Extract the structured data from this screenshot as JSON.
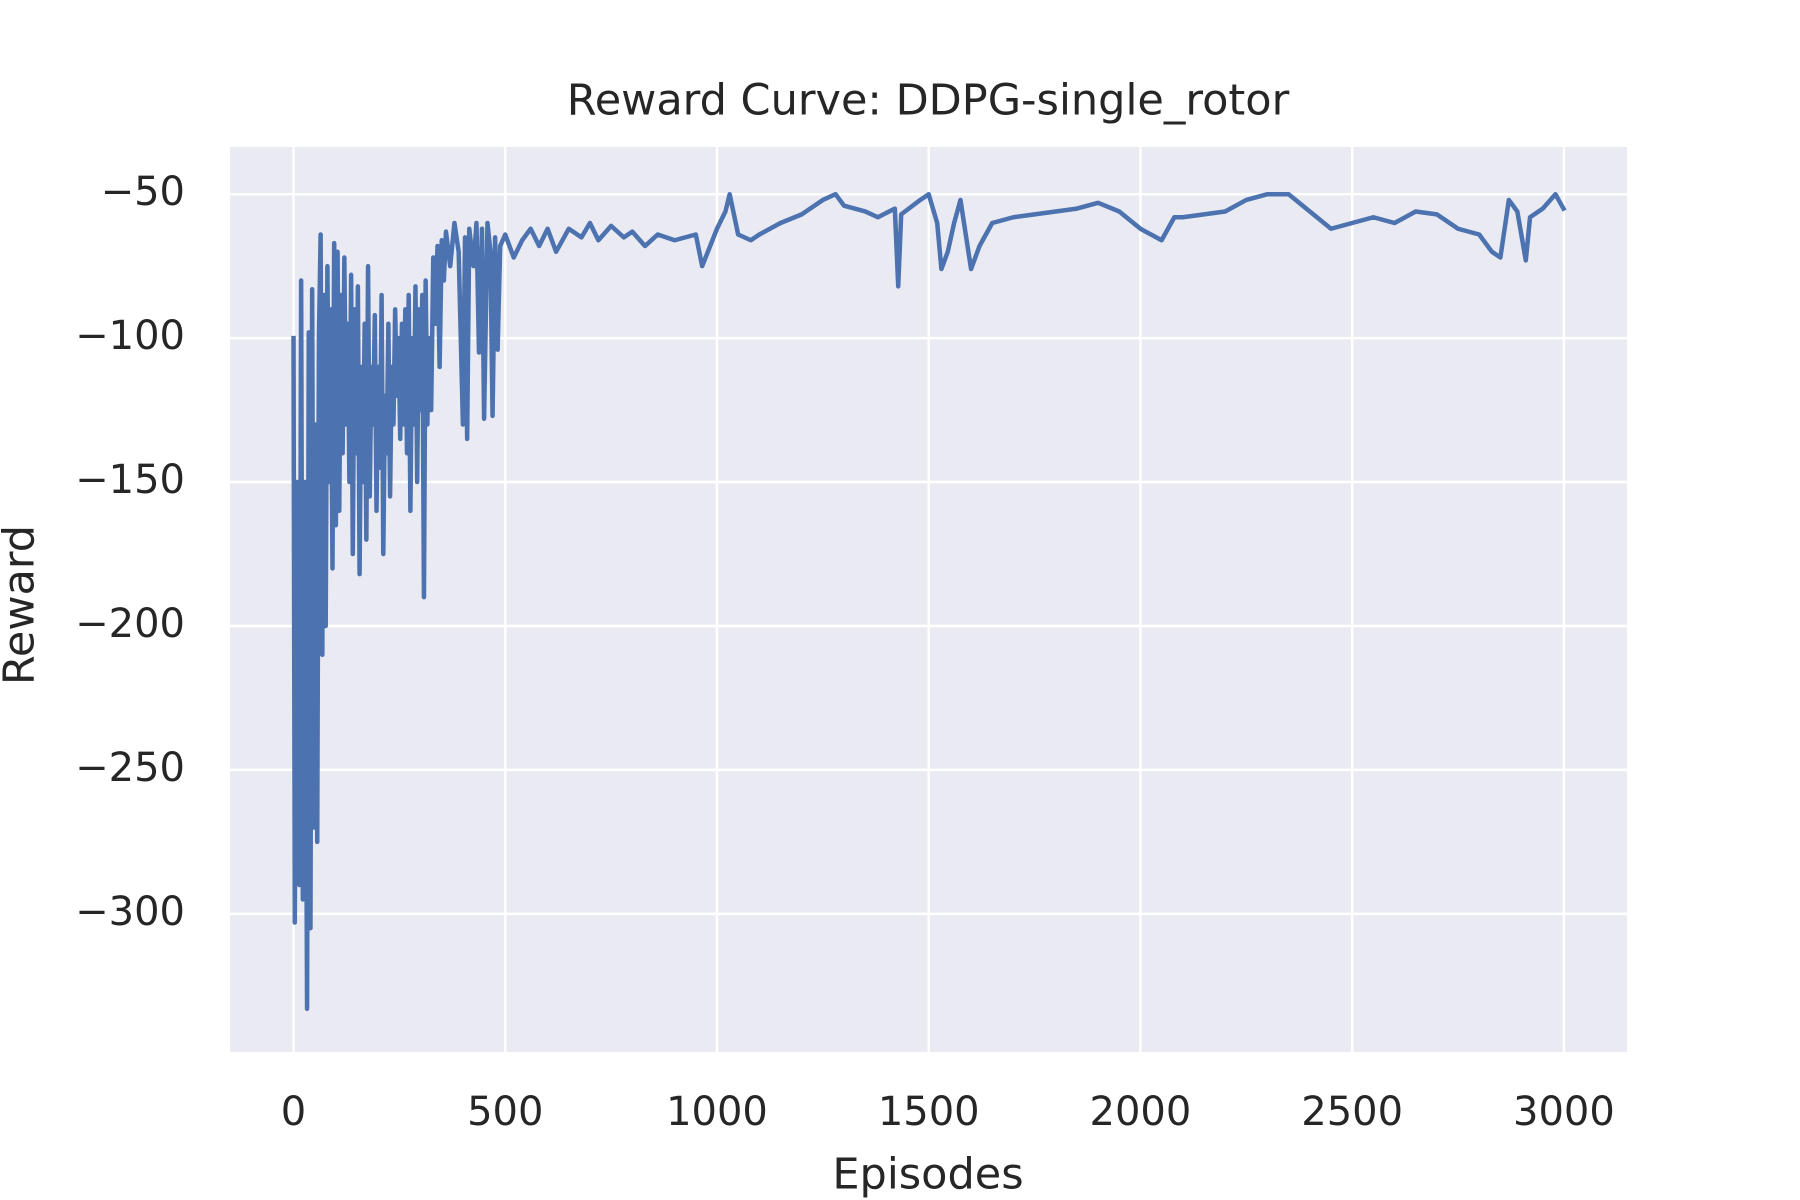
{
  "chart_data": {
    "type": "line",
    "title": "Reward Curve: DDPG-single_rotor",
    "xlabel": "Episodes",
    "ylabel": "Reward",
    "xlim": [
      -150,
      3149
    ],
    "ylim": [
      -348,
      -33.6
    ],
    "xticks": [
      0,
      500,
      1000,
      1500,
      2000,
      2500,
      3000
    ],
    "yticks": [
      {
        "value": -300,
        "label": "−300"
      },
      {
        "value": -250,
        "label": "−250"
      },
      {
        "value": -200,
        "label": "−200"
      },
      {
        "value": -150,
        "label": "−150"
      },
      {
        "value": -100,
        "label": "−100"
      },
      {
        "value": -50,
        "label": "−50"
      }
    ],
    "grid": true,
    "series": [
      {
        "color": "#4c72b0",
        "x": [
          0,
          3,
          8,
          14,
          18,
          22,
          27,
          32,
          36,
          40,
          44,
          48,
          52,
          56,
          60,
          64,
          68,
          72,
          76,
          80,
          84,
          88,
          92,
          96,
          100,
          104,
          108,
          112,
          116,
          120,
          124,
          128,
          132,
          136,
          140,
          144,
          148,
          152,
          156,
          160,
          164,
          168,
          172,
          176,
          180,
          184,
          188,
          192,
          196,
          200,
          204,
          208,
          212,
          216,
          220,
          224,
          228,
          232,
          236,
          240,
          244,
          248,
          252,
          256,
          260,
          264,
          268,
          272,
          276,
          280,
          284,
          288,
          292,
          296,
          300,
          304,
          308,
          312,
          316,
          320,
          325,
          330,
          335,
          340,
          345,
          350,
          355,
          360,
          370,
          380,
          390,
          400,
          405,
          410,
          415,
          425,
          432,
          438,
          445,
          450,
          458,
          465,
          470,
          476,
          482,
          488,
          500,
          520,
          540,
          560,
          580,
          600,
          620,
          650,
          680,
          700,
          720,
          750,
          780,
          800,
          830,
          860,
          900,
          950,
          965,
          1000,
          1020,
          1030,
          1050,
          1080,
          1100,
          1150,
          1200,
          1250,
          1280,
          1300,
          1350,
          1380,
          1420,
          1428,
          1435,
          1480,
          1500,
          1520,
          1530,
          1545,
          1560,
          1575,
          1600,
          1620,
          1650,
          1700,
          1750,
          1800,
          1850,
          1900,
          1950,
          2000,
          2050,
          2080,
          2100,
          2150,
          2200,
          2250,
          2300,
          2350,
          2400,
          2450,
          2500,
          2550,
          2600,
          2650,
          2700,
          2750,
          2800,
          2830,
          2850,
          2870,
          2890,
          2910,
          2920,
          2950,
          2980,
          2999
        ],
        "values": [
          -100,
          -303,
          -150,
          -290,
          -80,
          -295,
          -150,
          -333,
          -98,
          -305,
          -83,
          -270,
          -130,
          -275,
          -100,
          -64,
          -210,
          -85,
          -200,
          -75,
          -150,
          -90,
          -180,
          -67,
          -165,
          -70,
          -160,
          -85,
          -140,
          -72,
          -130,
          -95,
          -150,
          -78,
          -175,
          -90,
          -140,
          -82,
          -182,
          -110,
          -150,
          -95,
          -170,
          -75,
          -155,
          -110,
          -130,
          -92,
          -160,
          -110,
          -145,
          -85,
          -175,
          -120,
          -140,
          -95,
          -155,
          -110,
          -130,
          -90,
          -120,
          -100,
          -135,
          -95,
          -130,
          -90,
          -140,
          -85,
          -160,
          -100,
          -130,
          -82,
          -150,
          -90,
          -125,
          -85,
          -190,
          -80,
          -130,
          -100,
          -125,
          -72,
          -95,
          -68,
          -110,
          -66,
          -80,
          -63,
          -75,
          -60,
          -70,
          -130,
          -65,
          -135,
          -62,
          -75,
          -60,
          -105,
          -62,
          -128,
          -60,
          -70,
          -127,
          -65,
          -104,
          -68,
          -64,
          -72,
          -66,
          -62,
          -68,
          -62,
          -70,
          -62,
          -65,
          -60,
          -66,
          -61,
          -65,
          -63,
          -68,
          -64,
          -66,
          -64,
          -75,
          -62,
          -56,
          -50,
          -64,
          -66,
          -64,
          -60,
          -57,
          -52,
          -50,
          -54,
          -56,
          -58,
          -55,
          -82,
          -57,
          -52,
          -50,
          -60,
          -76,
          -70,
          -60,
          -52,
          -76,
          -68,
          -60,
          -58,
          -57,
          -56,
          -55,
          -53,
          -56,
          -62,
          -66,
          -58,
          -58,
          -57,
          -56,
          -52,
          -50,
          -50,
          -56,
          -62,
          -60,
          -58,
          -60,
          -56,
          -57,
          -62,
          -64,
          -70,
          -72,
          -52,
          -56,
          -73,
          -58,
          -55,
          -50,
          -55
        ]
      }
    ]
  }
}
